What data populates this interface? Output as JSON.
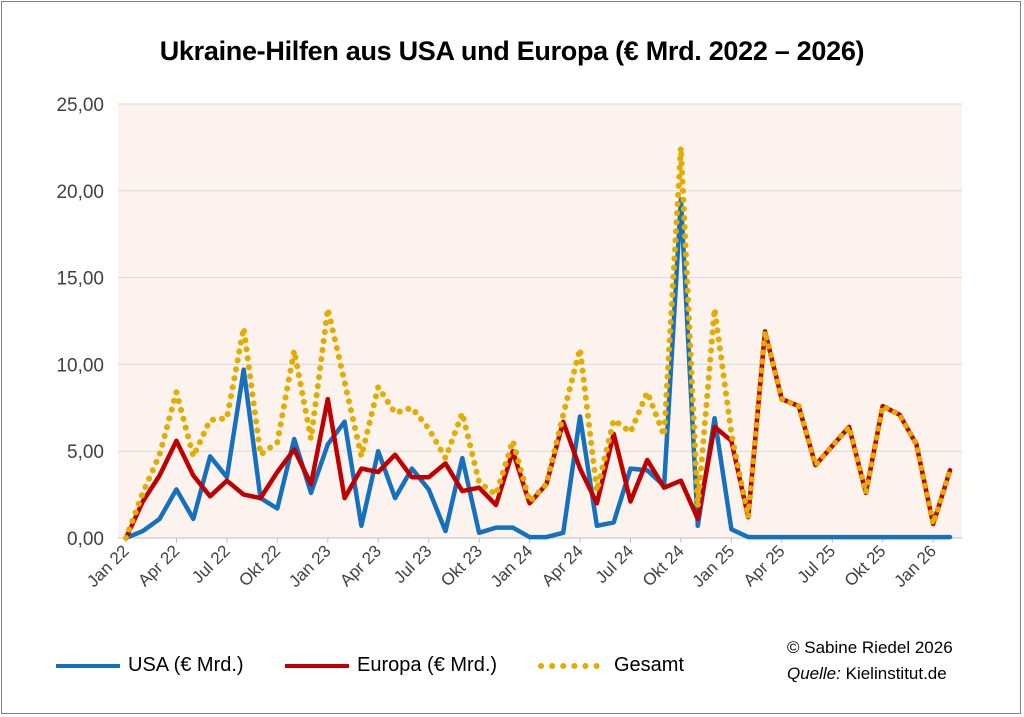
{
  "chart_data": {
    "type": "line",
    "title": "Ukraine-Hilfen aus USA und Europa (€ Mrd. 2022 – 2026)",
    "xlabel": "",
    "ylabel": "",
    "ylim": [
      0,
      25
    ],
    "y_ticks": [
      "0,00",
      "5,00",
      "10,00",
      "15,00",
      "20,00",
      "25,00"
    ],
    "x_ticks": [
      "Jan 22",
      "Apr 22",
      "Jul 22",
      "Okt 22",
      "Jan 23",
      "Apr 23",
      "Jul 23",
      "Okt 23",
      "Jan 24",
      "Apr 24",
      "Jul 24",
      "Okt 24",
      "Jan 25",
      "Apr 25",
      "Jul 25",
      "Okt 25",
      "Jan 26"
    ],
    "x": [
      "2022-01",
      "2022-02",
      "2022-03",
      "2022-04",
      "2022-05",
      "2022-06",
      "2022-07",
      "2022-08",
      "2022-09",
      "2022-10",
      "2022-11",
      "2022-12",
      "2023-01",
      "2023-02",
      "2023-03",
      "2023-04",
      "2023-05",
      "2023-06",
      "2023-07",
      "2023-08",
      "2023-09",
      "2023-10",
      "2023-11",
      "2023-12",
      "2024-01",
      "2024-02",
      "2024-03",
      "2024-04",
      "2024-05",
      "2024-06",
      "2024-07",
      "2024-08",
      "2024-09",
      "2024-10",
      "2024-11",
      "2024-12",
      "2025-01",
      "2025-02",
      "2025-03",
      "2025-04",
      "2025-05",
      "2025-06",
      "2025-07",
      "2025-08",
      "2025-09",
      "2025-10",
      "2025-11",
      "2025-12",
      "2026-01",
      "2026-02"
    ],
    "series": [
      {
        "name": "USA (€ Mrd.)",
        "color": "#1570BE",
        "values": [
          0.0,
          0.4,
          1.1,
          2.8,
          1.1,
          4.7,
          3.5,
          9.7,
          2.3,
          1.7,
          5.7,
          2.6,
          5.4,
          6.7,
          0.7,
          5.0,
          2.3,
          4.0,
          2.8,
          0.4,
          4.6,
          0.3,
          0.6,
          0.6,
          0.05,
          0.05,
          0.3,
          7.0,
          0.7,
          0.9,
          4.0,
          3.9,
          3.0,
          19.5,
          0.7,
          6.9,
          0.5,
          0.05,
          0.05,
          0.05,
          0.05,
          0.05,
          0.05,
          0.05,
          0.05,
          0.05,
          0.05,
          0.05,
          0.05,
          0.05
        ]
      },
      {
        "name": "Europa (€ Mrd.)",
        "color": "#C00000",
        "values": [
          0.0,
          2.1,
          3.6,
          5.6,
          3.6,
          2.4,
          3.3,
          2.5,
          2.3,
          3.8,
          5.1,
          3.1,
          8.0,
          2.3,
          4.0,
          3.8,
          4.8,
          3.5,
          3.5,
          4.3,
          2.7,
          2.9,
          1.9,
          5.0,
          2.0,
          3.1,
          6.7,
          4.0,
          2.0,
          6.0,
          2.1,
          4.5,
          2.9,
          3.3,
          1.1,
          6.4,
          5.6,
          1.2,
          11.9,
          8.0,
          7.6,
          4.2,
          5.3,
          6.4,
          2.6,
          7.6,
          7.1,
          5.4,
          0.8,
          3.9
        ]
      },
      {
        "name": "Gesamt",
        "color": "#E2AC00",
        "values": [
          0.0,
          2.6,
          4.8,
          8.4,
          4.7,
          6.8,
          6.9,
          12.1,
          4.8,
          5.5,
          10.8,
          5.7,
          13.2,
          9.0,
          4.7,
          8.7,
          7.2,
          7.5,
          6.3,
          4.6,
          7.2,
          3.2,
          2.5,
          5.6,
          2.1,
          3.1,
          7.1,
          10.9,
          2.7,
          6.8,
          6.1,
          8.4,
          5.9,
          22.5,
          1.8,
          13.2,
          6.0,
          1.2,
          11.9,
          8.0,
          7.6,
          4.2,
          5.3,
          6.4,
          2.6,
          7.6,
          7.1,
          5.4,
          0.8,
          3.9
        ]
      }
    ],
    "grid": true,
    "legend_position": "bottom-left",
    "plot_background": "#FDF3EE"
  },
  "credits": {
    "copyright": "©  Sabine Riedel 2026",
    "source_label": "Quelle:",
    "source_value": "Kielinstitut.de"
  }
}
